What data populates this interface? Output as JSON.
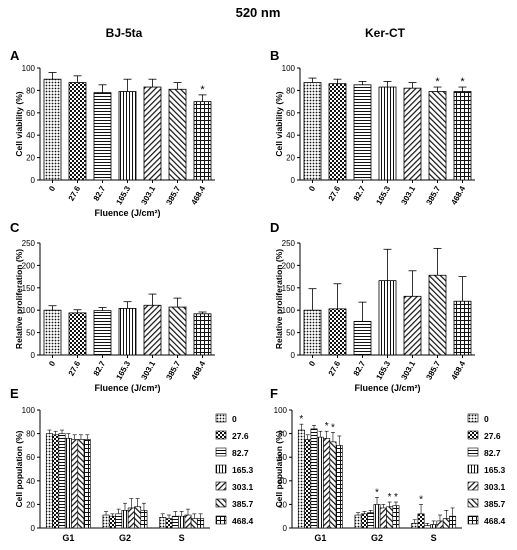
{
  "figure": {
    "title": "520 nm",
    "col_left": "BJ-5ta",
    "col_right": "Ker-CT"
  },
  "legend": [
    "0",
    "27.6",
    "82.7",
    "165.3",
    "303.1",
    "385.7",
    "468.4"
  ],
  "chart_data": [
    {
      "panel": "A",
      "type": "bar",
      "categories": [
        "0",
        "27.6",
        "82.7",
        "165.3",
        "303.1",
        "385.7",
        "468.4"
      ],
      "values": [
        90,
        87,
        78,
        79,
        83,
        81,
        70
      ],
      "errors": [
        6,
        6,
        7,
        11,
        7,
        6,
        6
      ],
      "stars": [
        "",
        "",
        "",
        "",
        "",
        "",
        "*"
      ],
      "ylabel": "Cell viability (%)",
      "xlabel": "Fluence (J/cm²)",
      "ylim": [
        0,
        100
      ],
      "yticks": [
        "0",
        "20",
        "40",
        "60",
        "80",
        "100"
      ]
    },
    {
      "panel": "B",
      "type": "bar",
      "categories": [
        "0",
        "27.6",
        "82.7",
        "165.3",
        "303.1",
        "385.7",
        "468.4"
      ],
      "values": [
        87,
        86,
        85,
        83,
        82,
        79,
        79
      ],
      "errors": [
        4,
        4,
        3,
        5,
        5,
        4,
        4
      ],
      "stars": [
        "",
        "",
        "",
        "",
        "",
        "*",
        "*"
      ],
      "ylabel": "Cell viability (%)",
      "xlabel": "",
      "ylim": [
        0,
        100
      ],
      "yticks": [
        "0",
        "20",
        "40",
        "60",
        "80",
        "100"
      ]
    },
    {
      "panel": "C",
      "type": "bar",
      "categories": [
        "0",
        "27.6",
        "82.7",
        "165.3",
        "303.1",
        "385.7",
        "468.4"
      ],
      "values": [
        100,
        94,
        99,
        104,
        111,
        107,
        92
      ],
      "errors": [
        10,
        7,
        7,
        15,
        25,
        20,
        4
      ],
      "stars": [
        "",
        "",
        "",
        "",
        "",
        "",
        ""
      ],
      "ylabel": "Relative proliferation (%)",
      "xlabel": "Fluence (J/cm²)",
      "ylim": [
        0,
        250
      ],
      "yticks": [
        "0",
        "50",
        "100",
        "150",
        "200",
        "250"
      ]
    },
    {
      "panel": "D",
      "type": "bar",
      "categories": [
        "0",
        "27.6",
        "82.7",
        "165.3",
        "303.1",
        "385.7",
        "468.4"
      ],
      "values": [
        100,
        103,
        75,
        166,
        131,
        178,
        120
      ],
      "errors": [
        48,
        56,
        43,
        70,
        57,
        60,
        55
      ],
      "stars": [
        "",
        "",
        "",
        "",
        "",
        "",
        ""
      ],
      "ylabel": "Relative proliferation (%)",
      "xlabel": "Fluence (J/cm²)",
      "ylim": [
        0,
        250
      ],
      "yticks": [
        "0",
        "50",
        "100",
        "150",
        "200",
        "250"
      ]
    },
    {
      "panel": "E",
      "type": "bar",
      "categories": [
        "G1",
        "G2",
        "S"
      ],
      "series": [
        {
          "name": "0",
          "values": [
            80,
            11,
            9
          ],
          "errors": [
            3,
            3,
            3
          ]
        },
        {
          "name": "27.6",
          "values": [
            79,
            10,
            8
          ],
          "errors": [
            3,
            2,
            3
          ]
        },
        {
          "name": "82.7",
          "values": [
            80,
            12,
            10
          ],
          "errors": [
            3,
            4,
            4
          ]
        },
        {
          "name": "165.3",
          "values": [
            76,
            15,
            10
          ],
          "errors": [
            4,
            6,
            4
          ]
        },
        {
          "name": "303.1",
          "values": [
            75,
            17,
            11
          ],
          "errors": [
            4,
            8,
            5
          ]
        },
        {
          "name": "385.7",
          "values": [
            75,
            18,
            8
          ],
          "errors": [
            4,
            7,
            4
          ]
        },
        {
          "name": "468.4",
          "values": [
            75,
            15,
            8
          ],
          "errors": [
            4,
            6,
            4
          ]
        }
      ],
      "stars": [
        [],
        [],
        []
      ],
      "ylabel": "Cell population (%)",
      "xlabel": "",
      "ylim": [
        0,
        100
      ],
      "yticks": [
        "0",
        "20",
        "40",
        "60",
        "80",
        "100"
      ]
    },
    {
      "panel": "F",
      "type": "bar",
      "categories": [
        "G1",
        "G2",
        "S"
      ],
      "series": [
        {
          "name": "0",
          "values": [
            83,
            11,
            4
          ],
          "errors": [
            5,
            2,
            3
          ]
        },
        {
          "name": "27.6",
          "values": [
            75,
            12,
            12
          ],
          "errors": [
            4,
            2,
            8
          ]
        },
        {
          "name": "82.7",
          "values": [
            84,
            13,
            2
          ],
          "errors": [
            3,
            2,
            2
          ]
        },
        {
          "name": "165.3",
          "values": [
            77,
            20,
            3
          ],
          "errors": [
            5,
            6,
            3
          ]
        },
        {
          "name": "303.1",
          "values": [
            76,
            17,
            6
          ],
          "errors": [
            6,
            3,
            5
          ]
        },
        {
          "name": "385.7",
          "values": [
            73,
            18,
            8
          ],
          "errors": [
            8,
            4,
            7
          ]
        },
        {
          "name": "468.4",
          "values": [
            70,
            19,
            10
          ],
          "errors": [
            8,
            3,
            7
          ]
        }
      ],
      "stars": [
        [
          0,
          4,
          5
        ],
        [
          3,
          5,
          6
        ],
        [
          1
        ]
      ],
      "ylabel": "Cell population (%)",
      "xlabel": "",
      "ylim": [
        0,
        100
      ],
      "yticks": [
        "0",
        "20",
        "40",
        "60",
        "80",
        "100"
      ]
    }
  ]
}
